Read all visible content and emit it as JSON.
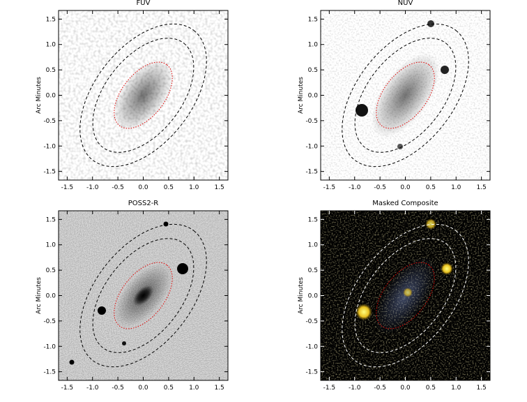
{
  "chart_data": [
    {
      "type": "image",
      "title": "FUV",
      "ylabel": "Arc Minutes",
      "xlim": [
        -1.67,
        1.67
      ],
      "ylim": [
        -1.67,
        1.67
      ],
      "xticks": [
        -1.5,
        {
          "value": -1,
          "label": "-1.0"
        },
        -0.5,
        {
          "value": 0,
          "label": "0.0"
        },
        0.5,
        {
          "value": 1,
          "label": "1.0"
        },
        1.5
      ],
      "yticks": [
        -1.5,
        {
          "value": -1,
          "label": "-1.0"
        },
        -0.5,
        {
          "value": 0,
          "label": "0.0"
        },
        0.5,
        {
          "value": 1,
          "label": "1.0"
        },
        1.5
      ]
    },
    {
      "type": "image",
      "title": "NUV",
      "ylabel": "Arc Minutes",
      "xlim": [
        -1.67,
        1.67
      ],
      "ylim": [
        -1.67,
        1.67
      ],
      "xticks": [
        -1.5,
        {
          "value": -1,
          "label": "-1.0"
        },
        -0.5,
        {
          "value": 0,
          "label": "0.0"
        },
        0.5,
        {
          "value": 1,
          "label": "1.0"
        },
        1.5
      ],
      "yticks": [
        -1.5,
        {
          "value": -1,
          "label": "-1.0"
        },
        -0.5,
        {
          "value": 0,
          "label": "0.0"
        },
        0.5,
        {
          "value": 1,
          "label": "1.0"
        },
        1.5
      ]
    },
    {
      "type": "image",
      "title": "POSS2-R",
      "ylabel": "Arc Minutes",
      "xlim": [
        -1.67,
        1.67
      ],
      "ylim": [
        -1.67,
        1.67
      ],
      "xticks": [
        -1.5,
        {
          "value": -1,
          "label": "-1.0"
        },
        -0.5,
        {
          "value": 0,
          "label": "0.0"
        },
        0.5,
        {
          "value": 1,
          "label": "1.0"
        },
        1.5
      ],
      "yticks": [
        -1.5,
        {
          "value": -1,
          "label": "-1.0"
        },
        -0.5,
        {
          "value": 0,
          "label": "0.0"
        },
        0.5,
        {
          "value": 1,
          "label": "1.0"
        },
        1.5
      ]
    },
    {
      "type": "image",
      "title": "Masked Composite",
      "ylabel": "Arc Minutes",
      "xlim": [
        -1.67,
        1.67
      ],
      "ylim": [
        -1.67,
        1.67
      ],
      "xticks": [
        -1.5,
        {
          "value": -1,
          "label": "-1.0"
        },
        -0.5,
        {
          "value": 0,
          "label": "0.0"
        },
        0.5,
        {
          "value": 1,
          "label": "1.0"
        },
        1.5
      ],
      "yticks": [
        -1.5,
        {
          "value": -1,
          "label": "-1.0"
        },
        -0.5,
        {
          "value": 0,
          "label": "0.0"
        },
        0.5,
        {
          "value": 1,
          "label": "1.0"
        },
        1.5
      ]
    }
  ]
}
